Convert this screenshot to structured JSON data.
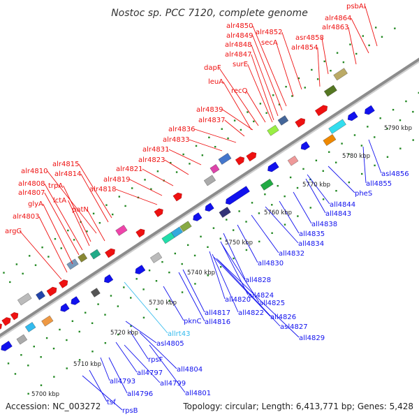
{
  "title": "Nostoc sp. PCC 7120, complete genome",
  "footer": {
    "accession": "Accession: NC_003272",
    "topology": "Topology: circular; Length: 6,413,771 bp; Genes: 5,428"
  },
  "colors": {
    "forward": "#ee1111",
    "reverse": "#1111ee",
    "rna": "#33bbee",
    "backbone": "#8c8c8c",
    "ticks": "#228822"
  },
  "ticks": [
    "5700 kbp",
    "5710 kbp",
    "5720 kbp",
    "5730 kbp",
    "5740 kbp",
    "5750 kbp",
    "5760 kbp",
    "5770 kbp",
    "5780 kbp",
    "5790 kbp"
  ],
  "forward_labels": [
    "psbAI",
    "alr4864",
    "alr4863",
    "asr4858",
    "alr4854",
    "alr4852",
    "secA",
    "alr4850",
    "alr4849",
    "alr4848",
    "alr4847",
    "surE",
    "dapF",
    "leuA",
    "recQ",
    "alr4839",
    "alr4837",
    "alr4836",
    "alr4833",
    "alr4831",
    "alr4823",
    "alr4821",
    "alr4819",
    "alr4818",
    "alr4815",
    "alr4814",
    "alr4810",
    "trpA",
    "lctA",
    "alr4808",
    "alr4807",
    "glyA",
    "patN",
    "alr4803",
    "argG"
  ],
  "reverse_labels": [
    "asl4856",
    "all4855",
    "pheS",
    "all4844",
    "all4843",
    "all4838",
    "all4835",
    "all4834",
    "all4832",
    "all4830",
    "all4828",
    "all4824",
    "all4825",
    "all4820",
    "all4822",
    "all4826",
    "asl4827",
    "all4829",
    "all4817",
    "all4816",
    "pknC",
    "allrt43",
    "asl4805",
    "rpsF",
    "all4804",
    "all4797",
    "all4799",
    "all4793",
    "all4796",
    "all4801",
    "tsf",
    "rpsB"
  ]
}
